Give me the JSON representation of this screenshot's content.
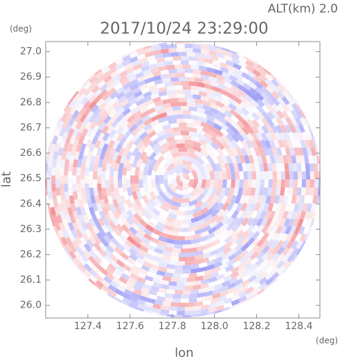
{
  "chart_data": {
    "type": "ppi",
    "title": "2017/10/24 23:29:00",
    "subtitle": "ALT(km) 2.0",
    "x_label": "lon",
    "y_label": "lat",
    "x_unit": "(deg)",
    "y_unit": "(deg)",
    "xlim": [
      127.2,
      128.5
    ],
    "ylim": [
      25.95,
      27.04
    ],
    "xticks": [
      127.4,
      127.6,
      127.8,
      {
        "value": 128,
        "label": "128.0"
      },
      128.2,
      128.4
    ],
    "yticks": [
      {
        "value": 26,
        "label": "26.0"
      },
      26.1,
      26.2,
      26.3,
      26.4,
      26.5,
      26.6,
      26.7,
      26.8,
      26.9,
      {
        "value": 27,
        "label": "27.0"
      }
    ]
  }
}
